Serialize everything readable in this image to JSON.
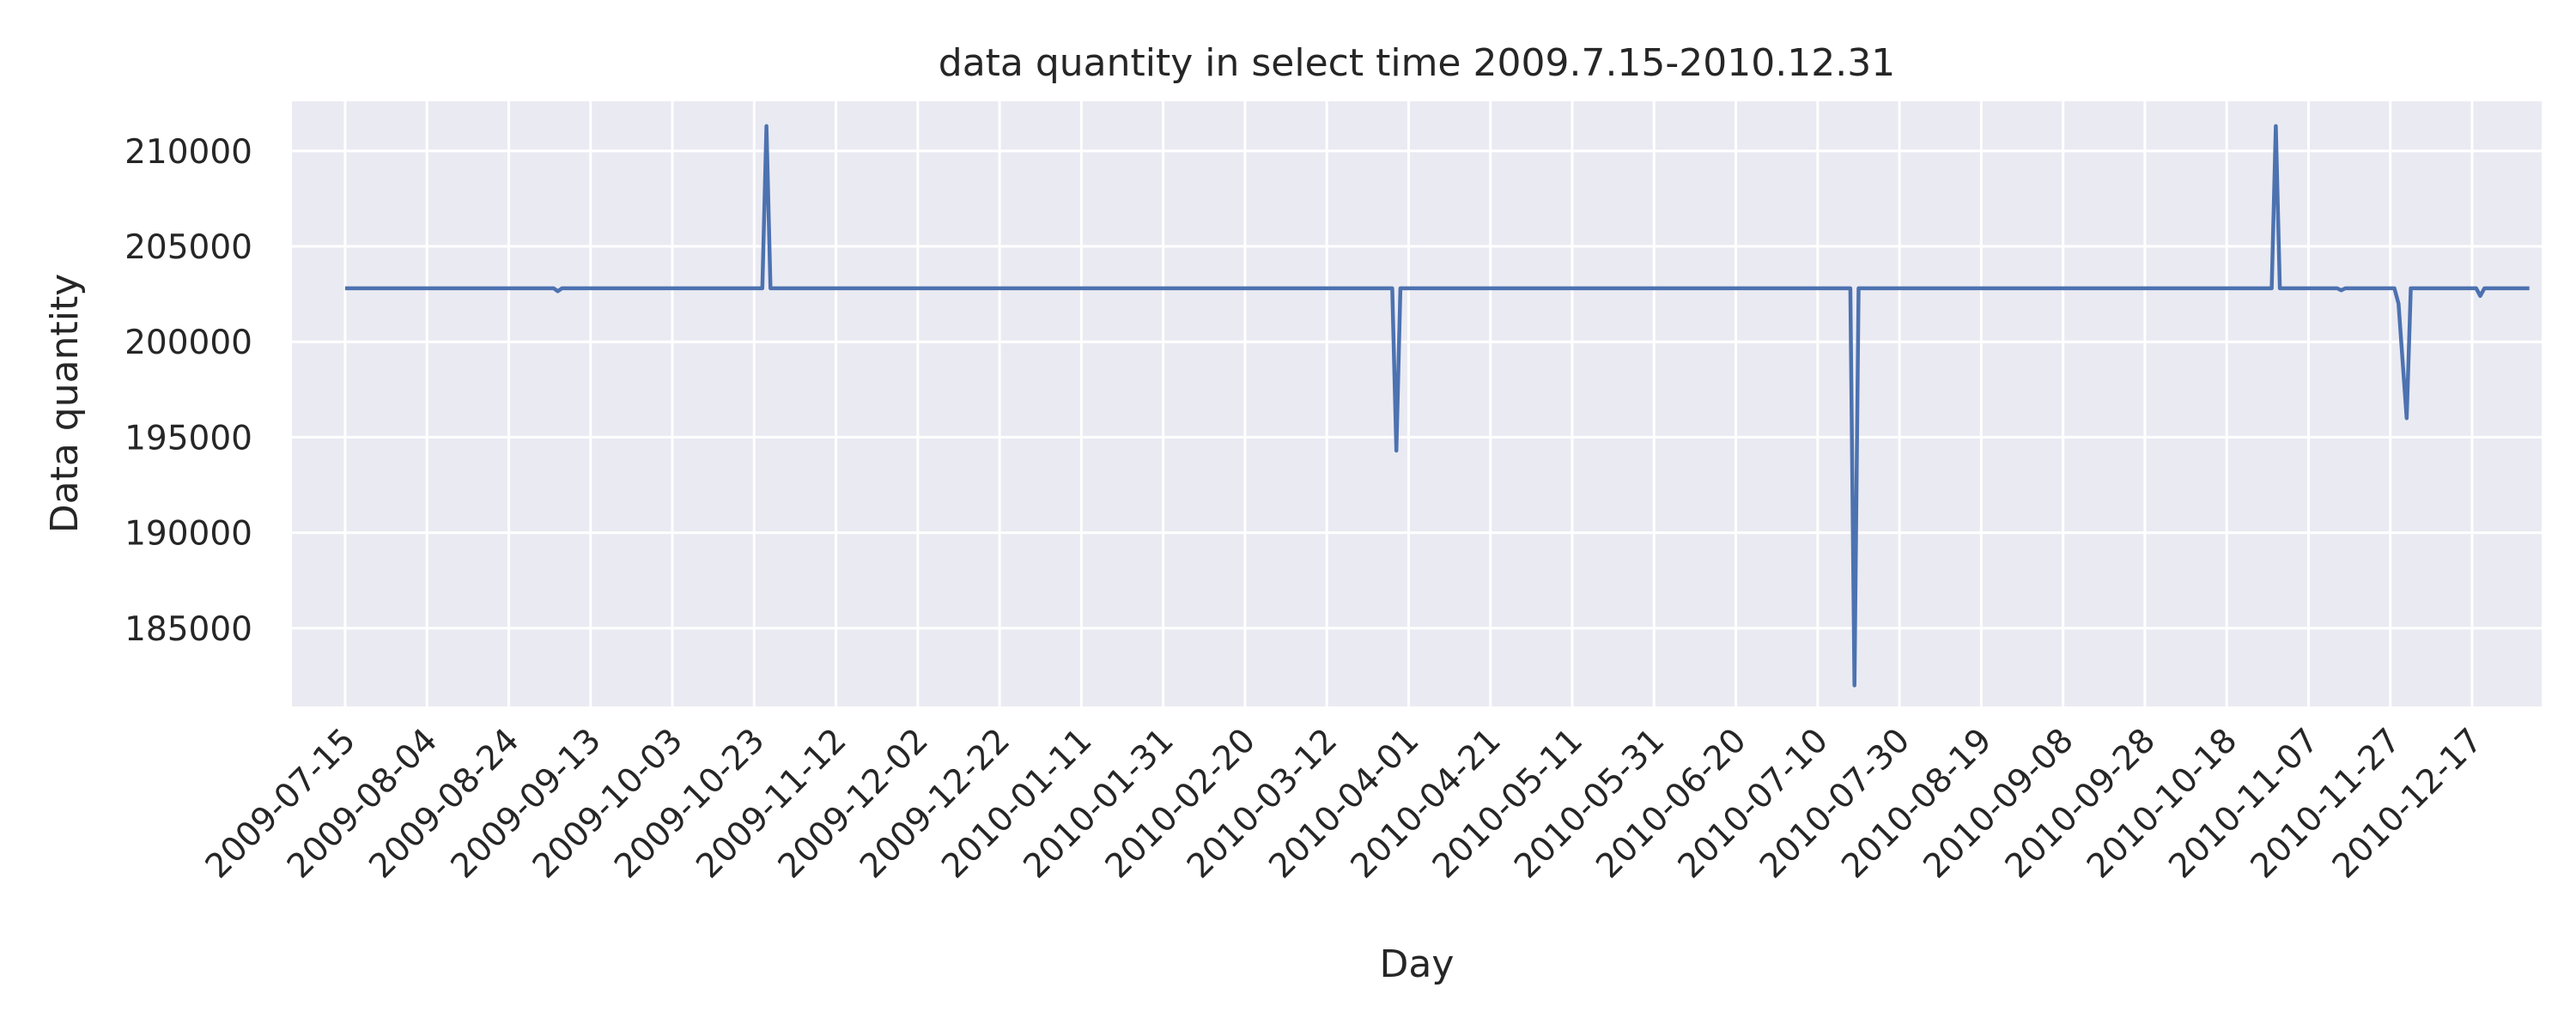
{
  "chart_data": {
    "type": "line",
    "title": "data quantity in select time 2009.7.15-2010.12.31",
    "xlabel": "Day",
    "ylabel": "Data quantity",
    "x_range": [
      "2009-07-02",
      "2011-01-03"
    ],
    "ylim": [
      180900,
      212600
    ],
    "grid": true,
    "legend": "none",
    "colors": {
      "background": "#eaeaf2",
      "grid": "#ffffff",
      "line": "#4c72b0",
      "text": "#262626"
    },
    "x_ticks": [
      "2009-07-15",
      "2009-08-04",
      "2009-08-24",
      "2009-09-13",
      "2009-10-03",
      "2009-10-23",
      "2009-11-12",
      "2009-12-02",
      "2009-12-22",
      "2010-01-11",
      "2010-01-31",
      "2010-02-20",
      "2010-03-12",
      "2010-04-01",
      "2010-04-21",
      "2010-05-11",
      "2010-05-31",
      "2010-06-20",
      "2010-07-10",
      "2010-07-30",
      "2010-08-19",
      "2010-09-08",
      "2010-09-28",
      "2010-10-18",
      "2010-11-07",
      "2010-11-27",
      "2010-12-17"
    ],
    "y_ticks": [
      185000,
      190000,
      195000,
      200000,
      205000,
      210000
    ],
    "series": [
      {
        "points": [
          [
            "2009-07-15",
            202800
          ],
          [
            "2009-09-04",
            202800
          ],
          [
            "2009-09-05",
            202650
          ],
          [
            "2009-09-06",
            202800
          ],
          [
            "2009-10-25",
            202800
          ],
          [
            "2009-10-26",
            211300
          ],
          [
            "2009-10-27",
            202800
          ],
          [
            "2010-03-28",
            202800
          ],
          [
            "2010-03-29",
            194300
          ],
          [
            "2010-03-30",
            202800
          ],
          [
            "2010-07-18",
            202800
          ],
          [
            "2010-07-19",
            182000
          ],
          [
            "2010-07-20",
            202800
          ],
          [
            "2010-10-29",
            202800
          ],
          [
            "2010-10-30",
            211300
          ],
          [
            "2010-10-31",
            202800
          ],
          [
            "2010-11-14",
            202800
          ],
          [
            "2010-11-15",
            202700
          ],
          [
            "2010-11-16",
            202800
          ],
          [
            "2010-11-28",
            202800
          ],
          [
            "2010-11-29",
            202000
          ],
          [
            "2010-12-01",
            196000
          ],
          [
            "2010-12-02",
            202800
          ],
          [
            "2010-12-18",
            202800
          ],
          [
            "2010-12-19",
            202400
          ],
          [
            "2010-12-20",
            202800
          ],
          [
            "2010-12-31",
            202800
          ]
        ]
      }
    ]
  }
}
